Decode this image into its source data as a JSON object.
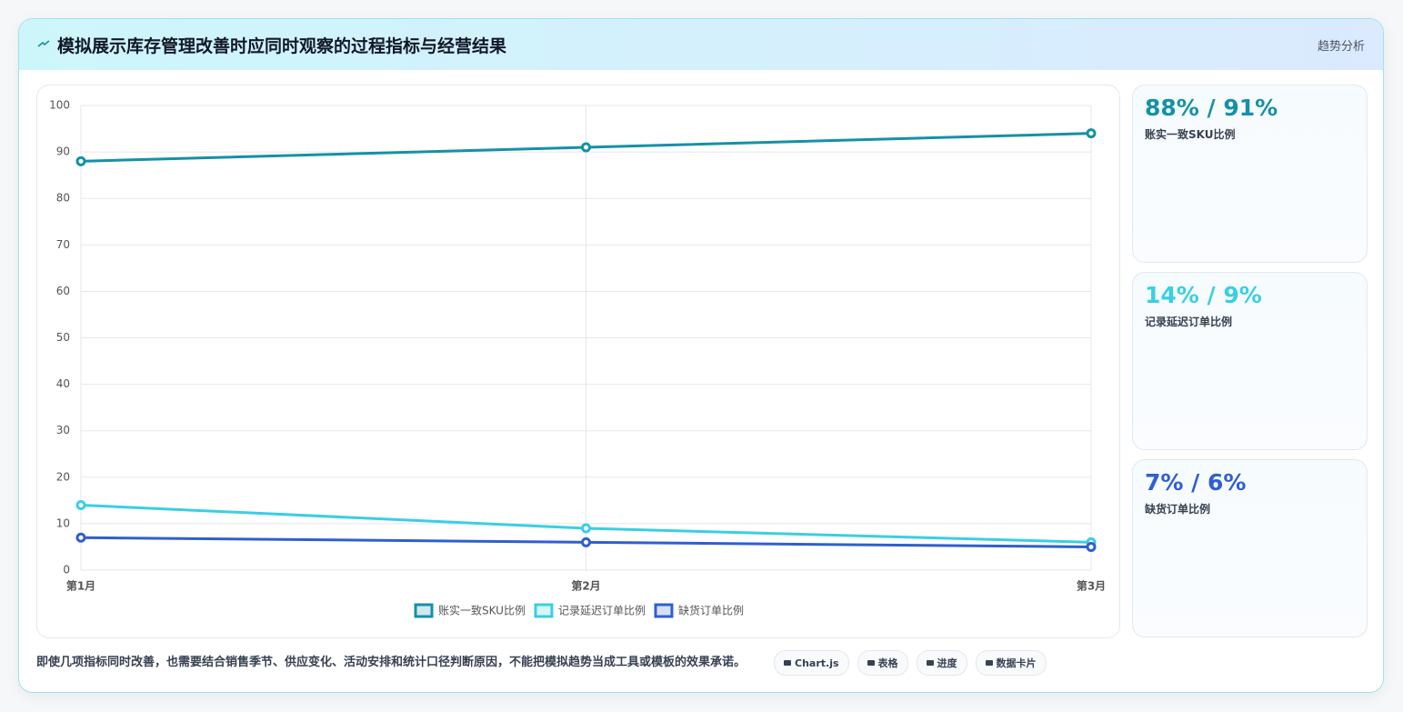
{
  "header": {
    "title": "模拟展示库存管理改善时应同时观察的过程指标与经营结果",
    "tag": "趋势分析"
  },
  "chart_data": {
    "type": "line",
    "categories": [
      "第1月",
      "第2月",
      "第3月"
    ],
    "series": [
      {
        "name": "账实一致SKU比例",
        "color": "#1591a6",
        "values": [
          88,
          91,
          94
        ]
      },
      {
        "name": "记录延迟订单比例",
        "color": "#3acfe2",
        "values": [
          14,
          9,
          6
        ]
      },
      {
        "name": "缺货订单比例",
        "color": "#2f5fcf",
        "values": [
          7,
          6,
          5
        ]
      }
    ],
    "ylim": [
      0,
      100
    ],
    "yticks": [
      0,
      10,
      20,
      30,
      40,
      50,
      60,
      70,
      80,
      90,
      100
    ],
    "grid": true
  },
  "cards": [
    {
      "value": "88% / 91%",
      "label": "账实一致SKU比例",
      "color": "#1591a6"
    },
    {
      "value": "14% / 9%",
      "label": "记录延迟订单比例",
      "color": "#3acfe2"
    },
    {
      "value": "7% / 6%",
      "label": "缺货订单比例",
      "color": "#2f5fcf"
    }
  ],
  "footer": {
    "note": "即使几项指标同时改善，也需要结合销售季节、供应变化、活动安排和统计口径判断原因，不能把模拟趋势当成工具或模板的效果承诺。",
    "badges": [
      "Chart.js",
      "表格",
      "进度",
      "数据卡片"
    ]
  }
}
